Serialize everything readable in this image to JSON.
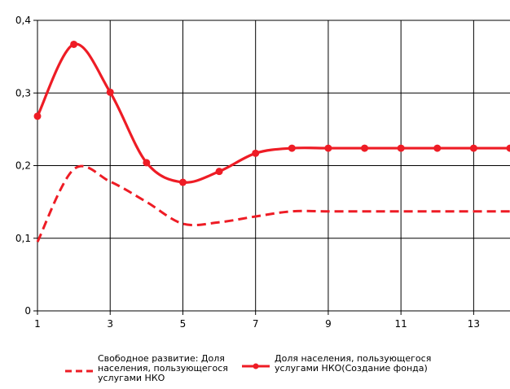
{
  "chart_data": {
    "type": "line",
    "x": [
      1,
      2,
      3,
      4,
      5,
      6,
      7,
      8,
      9,
      10,
      11,
      12,
      13,
      14
    ],
    "series": [
      {
        "name_lines": [
          "Свободное развитие: Доля",
          "населения, пользующегося",
          "услугами НКО"
        ],
        "style": "dashed",
        "markers": false,
        "color": "#ee1c25",
        "values": [
          0.095,
          0.195,
          0.178,
          0.15,
          0.12,
          0.122,
          0.13,
          0.137,
          0.137,
          0.137,
          0.137,
          0.137,
          0.137,
          0.137
        ]
      },
      {
        "name_lines": [
          "Доля населения, пользующегося",
          "услугами НКО(Создание фонда)"
        ],
        "style": "solid",
        "markers": true,
        "color": "#ee1c25",
        "values": [
          0.268,
          0.367,
          0.301,
          0.204,
          0.177,
          0.192,
          0.217,
          0.224,
          0.224,
          0.224,
          0.224,
          0.224,
          0.224,
          0.224
        ]
      }
    ],
    "xlim": [
      1,
      14
    ],
    "ylim": [
      0,
      0.4
    ],
    "x_ticks": [
      1,
      3,
      5,
      7,
      9,
      11,
      13
    ],
    "x_tick_labels": [
      "1",
      "3",
      "5",
      "7",
      "9",
      "11",
      "13"
    ],
    "y_ticks": [
      0,
      0.1,
      0.2,
      0.3,
      0.4
    ],
    "y_tick_labels": [
      "0",
      "0,1",
      "0,2",
      "0,3",
      "0,4"
    ],
    "grid": true,
    "legend_position": "bottom"
  }
}
